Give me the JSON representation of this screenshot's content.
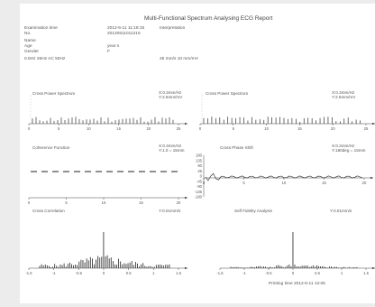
{
  "report": {
    "title": "Multi-Functional Spectrum Analysing ECG Report",
    "fields": [
      {
        "label": "Examination time",
        "value": "2012-5-11 11:18:15"
      },
      {
        "label": "No.",
        "value": "20120511011215"
      },
      {
        "label": "Name",
        "value": ""
      },
      {
        "label": "Age",
        "value": "year s"
      },
      {
        "label": "Gender",
        "value": "F"
      }
    ],
    "interpretation_label": "Interpretation",
    "filter_text": "0.5Hz  25Hz AC 50Hz",
    "gain_text": "25 mm/s 10 mm/mV",
    "printing_time": "Printing time  2012-5-11 12:05"
  },
  "panels": [
    {
      "title": "Cross Power Spectrum",
      "scale": "X:0.3mm/Hz\nY:2.5mm/mV"
    },
    {
      "title": "Cross Power Spectrum",
      "scale": "X:0.3mm/Hz\nY:2.5mm/mV"
    },
    {
      "title": "Coherence Function",
      "scale": "X:0.3mm/Hz\nY:1.0 = 15mm"
    },
    {
      "title": "Cross Phase Shift",
      "scale": "X:0.3mm/Hz\nY:180deg = 15mm"
    },
    {
      "title": "Cross Correlation",
      "scale": "Y:0.01mm/s"
    },
    {
      "title": "Self Fidelity Analysis",
      "scale": "Y:0.01mm/s"
    }
  ],
  "chart_data": [
    {
      "type": "bar",
      "title": "Cross Power Spectrum",
      "x_ticks": [
        "0",
        "5",
        "10",
        "15",
        "20",
        "25"
      ]
    },
    {
      "type": "bar",
      "title": "Cross Power Spectrum",
      "x_ticks": [
        "0",
        "5",
        "10",
        "15",
        "20",
        "25"
      ]
    },
    {
      "type": "line",
      "title": "Coherence Function",
      "x_ticks": [
        "0",
        "5",
        "10",
        "15",
        "20"
      ]
    },
    {
      "type": "line",
      "title": "Cross Phase Shift",
      "x_ticks": [
        "0",
        "5",
        "10",
        "15",
        "20"
      ],
      "y_ticks": [
        "180",
        "135",
        "90",
        "45",
        "0",
        "-45",
        "-90",
        "-135",
        "-180"
      ]
    },
    {
      "type": "bar",
      "title": "Cross Correlation",
      "x_ticks": [
        "-1.5",
        "-1",
        "-0.5",
        "0",
        "0.5",
        "1",
        "1.5"
      ]
    },
    {
      "type": "bar",
      "title": "Self Fidelity Analysis",
      "x_ticks": [
        "-1.5",
        "-1",
        "-0.5",
        "0",
        "0.5",
        "1",
        "1.5"
      ]
    }
  ]
}
